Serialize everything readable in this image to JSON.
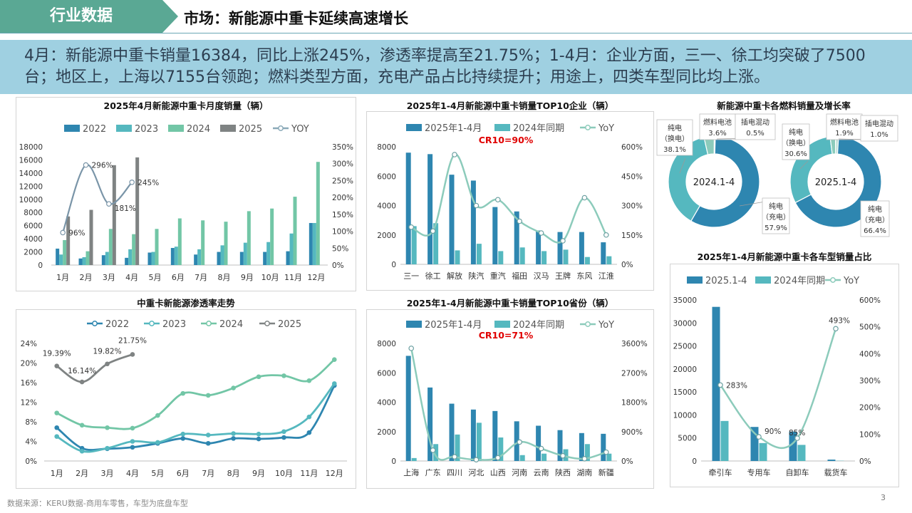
{
  "header": {
    "tag": "行业数据",
    "title": "市场：新能源中重卡延续高速增长"
  },
  "summary": "4月：新能源中重卡销量16384，同比上涨245%，渗透率提高至21.75%；1-4月：企业方面，三一、徐工均突破了7500台；地区上，上海以7155台领跑；燃料类型方面，充电产品占比持续提升；用途上，四类车型同比均上涨。",
  "footer": {
    "source": "数据来源：KERU数据-商用车零售，车型为底盘车型",
    "page": "3"
  },
  "colors": {
    "y2022": "#2e86b0",
    "y2023": "#55b8bf",
    "y2024": "#72c6a6",
    "y2025": "#7f8383",
    "bar_primary": "#2e86b0",
    "bar_secondary": "#55b8bf",
    "yoy_line": "#8ccbbb",
    "cr_red": "#e00000",
    "donut_dark": "#2e86b0",
    "donut_mid": "#55b8bf",
    "donut_light": "#8ccbbb",
    "donut_pale": "#b6dcd2"
  },
  "chart_data": [
    {
      "id": "monthly",
      "type": "bar",
      "title": "2025年4月新能源中重卡月度销量（辆）",
      "categories": [
        "1月",
        "2月",
        "3月",
        "4月",
        "5月",
        "6月",
        "7月",
        "8月",
        "9月",
        "10月",
        "11月",
        "12月"
      ],
      "series": [
        {
          "name": "2022",
          "values": [
            2500,
            1000,
            1500,
            1100,
            1900,
            2600,
            1600,
            2000,
            2000,
            2000,
            2100,
            6400
          ]
        },
        {
          "name": "2023",
          "values": [
            1600,
            1200,
            2000,
            2400,
            2000,
            2800,
            2400,
            3000,
            3400,
            3500,
            4800,
            6400
          ]
        },
        {
          "name": "2024",
          "values": [
            3800,
            2100,
            5500,
            4700,
            5500,
            7100,
            6800,
            6600,
            8200,
            8600,
            10400,
            15700
          ]
        },
        {
          "name": "2025",
          "values": [
            7400,
            8400,
            15200,
            16384,
            null,
            null,
            null,
            null,
            null,
            null,
            null,
            null
          ]
        }
      ],
      "yoy": {
        "name": "YOY",
        "values": [
          96,
          296,
          181,
          245
        ],
        "labels": [
          "96%",
          "296%",
          "181%",
          "245%"
        ]
      },
      "ylim": [
        0,
        18000
      ],
      "yticks": [
        "0",
        "2000",
        "4000",
        "6000",
        "8000",
        "10000",
        "12000",
        "14000",
        "16000",
        "18000"
      ],
      "y2lim": [
        0,
        350
      ],
      "y2ticks": [
        "0%",
        "50%",
        "100%",
        "150%",
        "200%",
        "250%",
        "300%",
        "350%"
      ],
      "legend": "top"
    },
    {
      "id": "penetration",
      "type": "line",
      "title": "中重卡新能源渗透率走势",
      "categories": [
        "1月",
        "2月",
        "3月",
        "4月",
        "5月",
        "6月",
        "7月",
        "8月",
        "9月",
        "10月",
        "11月",
        "12月"
      ],
      "series": [
        {
          "name": "2022",
          "values": [
            6.8,
            2.6,
            2.5,
            2.8,
            3.6,
            4.6,
            3.6,
            4.6,
            4.5,
            4.8,
            5.8,
            15.4
          ]
        },
        {
          "name": "2023",
          "values": [
            5.0,
            2.0,
            2.6,
            4.0,
            3.8,
            5.5,
            5.3,
            5.6,
            5.5,
            6.0,
            9.0,
            15.8
          ]
        },
        {
          "name": "2024",
          "values": [
            9.8,
            7.3,
            6.8,
            6.7,
            9.3,
            13.8,
            13.4,
            14.9,
            17.2,
            17.4,
            16.4,
            20.7
          ]
        },
        {
          "name": "2025",
          "values": [
            19.39,
            16.14,
            19.82,
            21.75,
            null,
            null,
            null,
            null,
            null,
            null,
            null,
            null
          ]
        }
      ],
      "labels_2025": [
        "19.39%",
        "16.14%",
        "19.82%",
        "21.75%"
      ],
      "ylim": [
        0,
        24
      ],
      "yticks": [
        "0%",
        "4%",
        "8%",
        "12%",
        "16%",
        "20%",
        "24%"
      ],
      "legend": "top"
    },
    {
      "id": "top10_company",
      "type": "bar",
      "title": "2025年1-4月新能源中重卡销量TOP10企业（辆）",
      "annotation": "CR10=90%",
      "categories": [
        "三一",
        "徐工",
        "解放",
        "陕汽",
        "重汽",
        "福田",
        "汉马",
        "王牌",
        "东风",
        "江淮"
      ],
      "series": [
        {
          "name": "2025年1-4月",
          "values": [
            7600,
            7500,
            6100,
            5700,
            3900,
            3600,
            2300,
            2200,
            2200,
            1500
          ]
        },
        {
          "name": "2024年同期",
          "values": [
            2600,
            2800,
            950,
            1400,
            900,
            1150,
            900,
            1000,
            500,
            550
          ]
        }
      ],
      "yoy": {
        "name": "YoY",
        "values": [
          190,
          170,
          560,
          300,
          330,
          220,
          160,
          120,
          340,
          150
        ]
      },
      "ylim": [
        0,
        8000
      ],
      "yticks": [
        "0",
        "2000",
        "4000",
        "6000",
        "8000"
      ],
      "y2lim": [
        0,
        600
      ],
      "y2ticks": [
        "0%",
        "150%",
        "300%",
        "450%",
        "600%"
      ],
      "legend": "top"
    },
    {
      "id": "top10_province",
      "type": "bar",
      "title": "2025年1-4月新能源中重卡销量TOP10省份（辆）",
      "annotation": "CR10=71%",
      "categories": [
        "上海",
        "广东",
        "四川",
        "河北",
        "山西",
        "河南",
        "云南",
        "陕西",
        "湖南",
        "新疆"
      ],
      "series": [
        {
          "name": "2025年1-4月",
          "values": [
            7155,
            5000,
            3900,
            3500,
            3400,
            2700,
            2400,
            2100,
            1900,
            1850
          ]
        },
        {
          "name": "2024年同期",
          "values": [
            200,
            1150,
            1800,
            2600,
            1600,
            400,
            500,
            800,
            1150,
            500
          ]
        }
      ],
      "yoy": {
        "name": "YoY",
        "values": [
          3450,
          330,
          130,
          40,
          100,
          580,
          380,
          160,
          70,
          270
        ]
      },
      "ylim": [
        0,
        8000
      ],
      "yticks": [
        "0",
        "2000",
        "4000",
        "6000",
        "8000"
      ],
      "y2lim": [
        0,
        3600
      ],
      "y2ticks": [
        "0%",
        "900%",
        "1800%",
        "2700%",
        "3600%"
      ],
      "legend": "top"
    },
    {
      "id": "fuel_mix",
      "type": "pie",
      "title": "新能源中重卡各燃料销量及增长率",
      "donuts": [
        {
          "center": "2024.1-4",
          "slices": [
            {
              "name": "纯电（充电）",
              "value": 57.9,
              "label": "57.9%"
            },
            {
              "name": "纯电（换电）",
              "value": 38.1,
              "label": "38.1%"
            },
            {
              "name": "燃料电池",
              "value": 3.6,
              "label": "3.6%"
            },
            {
              "name": "插电混动",
              "value": 0.5,
              "label": "0.5%"
            }
          ]
        },
        {
          "center": "2025.1-4",
          "slices": [
            {
              "name": "纯电（充电）",
              "value": 66.4,
              "label": "66.4%"
            },
            {
              "name": "纯电（换电）",
              "value": 30.6,
              "label": "30.6%"
            },
            {
              "name": "燃料电池",
              "value": 1.9,
              "label": "1.9%"
            },
            {
              "name": "插电混动",
              "value": 1.0,
              "label": "1.0%"
            }
          ]
        }
      ],
      "slice_text": {
        "charge_l1": "纯电",
        "charge_l2": "（充电）",
        "swap_l1": "纯电",
        "swap_l2": "（换电）",
        "fcell": "燃料电池",
        "phev": "插电混动"
      }
    },
    {
      "id": "vehicle_type",
      "type": "bar",
      "title": "2025年1-4月新能源中重卡各车型销量占比",
      "categories": [
        "牵引车",
        "专用车",
        "自卸车",
        "载货车"
      ],
      "series": [
        {
          "name": "2025.1-4",
          "values": [
            33500,
            7400,
            6400,
            300
          ]
        },
        {
          "name": "2024年同期",
          "values": [
            8700,
            3900,
            3500,
            50
          ]
        }
      ],
      "yoy": {
        "name": "YoY",
        "values": [
          283,
          90,
          85,
          493
        ],
        "labels": [
          "283%",
          "90%",
          "85%",
          "493%"
        ]
      },
      "ylim": [
        0,
        35000
      ],
      "yticks": [
        "0",
        "5000",
        "10000",
        "15000",
        "20000",
        "25000",
        "30000",
        "35000"
      ],
      "y2lim": [
        0,
        600
      ],
      "y2ticks": [
        "0%",
        "100%",
        "200%",
        "300%",
        "400%",
        "500%",
        "600%"
      ],
      "legend": "top"
    }
  ]
}
